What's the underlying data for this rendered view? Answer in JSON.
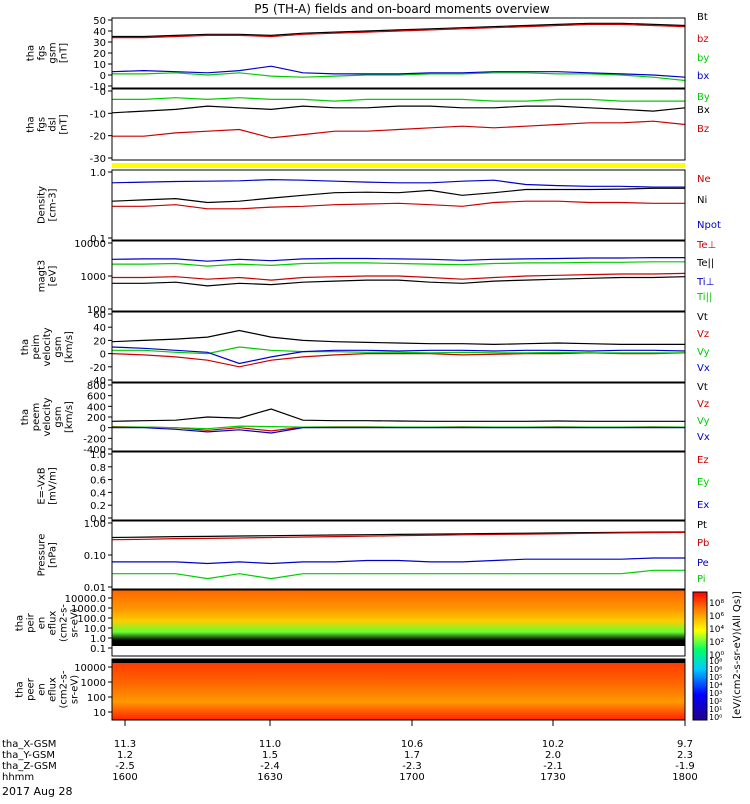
{
  "title": "P5 (TH-A) fields and on-board moments overview",
  "date_label": "2017 Aug 28",
  "colors": {
    "black": "#000000",
    "red": "#cc0000",
    "green": "#00cc00",
    "blue": "#0000cc",
    "yellow": "#ffff00"
  },
  "chart_data": [
    {
      "type": "line",
      "ylabel": [
        "tha",
        "fgs",
        "gsm",
        "[nT]"
      ],
      "ylim": [
        -10,
        50
      ],
      "yticks": [
        "50",
        "40",
        "30",
        "20",
        "10",
        "0",
        "-10"
      ],
      "series": [
        {
          "name": "Bt",
          "color": "#000000",
          "values": [
            35,
            35,
            36,
            37,
            37,
            36,
            38,
            39,
            40,
            41,
            42,
            43,
            44,
            45,
            46,
            47,
            47,
            46,
            45
          ]
        },
        {
          "name": "bz",
          "color": "#cc0000",
          "values": [
            34,
            34,
            35,
            36,
            36,
            35,
            37,
            38,
            39,
            40,
            41,
            42,
            43,
            44,
            45,
            46,
            46,
            45,
            44
          ]
        },
        {
          "name": "by",
          "color": "#00cc00",
          "values": [
            1,
            1,
            2,
            0,
            2,
            -1,
            -2,
            -1,
            0,
            0,
            1,
            1,
            2,
            2,
            1,
            1,
            0,
            -2,
            -5
          ]
        },
        {
          "name": "bx",
          "color": "#0000cc",
          "values": [
            3,
            4,
            3,
            2,
            4,
            8,
            2,
            1,
            1,
            1,
            2,
            2,
            3,
            3,
            3,
            2,
            1,
            0,
            -2
          ]
        }
      ]
    },
    {
      "type": "line",
      "ylabel": [
        "tha",
        "fgs",
        "dsl",
        "[nT]"
      ],
      "ylim": [
        -35,
        5
      ],
      "yticks": [
        "0",
        "-10",
        "-20",
        "-30"
      ],
      "series": [
        {
          "name": "By",
          "color": "#00cc00",
          "values": [
            0,
            0,
            1,
            0,
            1,
            0,
            0,
            -1,
            0,
            0,
            0,
            0,
            -1,
            -1,
            0,
            0,
            -1,
            -1,
            -1
          ]
        },
        {
          "name": "Bx",
          "color": "#000000",
          "values": [
            -8,
            -7,
            -6,
            -4,
            -5,
            -6,
            -4,
            -5,
            -5,
            -4,
            -4,
            -5,
            -5,
            -4,
            -4,
            -5,
            -6,
            -7,
            -5
          ]
        },
        {
          "name": "Bz",
          "color": "#cc0000",
          "values": [
            -22,
            -22,
            -20,
            -19,
            -18,
            -23,
            -21,
            -19,
            -19,
            -18,
            -17,
            -16,
            -17,
            -16,
            -15,
            -14,
            -14,
            -13,
            -15
          ]
        }
      ]
    },
    {
      "type": "line",
      "scale": "log",
      "ylabel": [
        "Density",
        "[cm-3]"
      ],
      "ylim": [
        0.1,
        1.2
      ],
      "yticks": [
        "1.0",
        "0.1"
      ],
      "series": [
        {
          "name": "Ne",
          "color": "#cc0000",
          "values": [
            0.33,
            0.33,
            0.35,
            0.3,
            0.3,
            0.32,
            0.33,
            0.35,
            0.36,
            0.37,
            0.35,
            0.33,
            0.38,
            0.4,
            0.4,
            0.38,
            0.38,
            0.37,
            0.37
          ]
        },
        {
          "name": "Ni",
          "color": "#000000",
          "values": [
            0.4,
            0.42,
            0.44,
            0.38,
            0.4,
            0.45,
            0.5,
            0.55,
            0.56,
            0.55,
            0.6,
            0.5,
            0.55,
            0.62,
            0.62,
            0.62,
            0.63,
            0.65,
            0.65
          ]
        },
        {
          "name": "Npot",
          "color": "#0000cc",
          "values": [
            0.8,
            0.82,
            0.84,
            0.85,
            0.86,
            0.9,
            0.88,
            0.85,
            0.82,
            0.8,
            0.8,
            0.85,
            0.88,
            0.75,
            0.72,
            0.7,
            0.7,
            0.68,
            0.68
          ]
        }
      ]
    },
    {
      "type": "line",
      "scale": "log",
      "ylabel": [
        "magt3",
        "[eV]"
      ],
      "ylim": [
        100,
        10000
      ],
      "yticks": [
        "10000",
        "1000",
        "100"
      ],
      "series": [
        {
          "name": "Te⊥",
          "color": "#cc0000",
          "values": [
            900,
            900,
            950,
            800,
            900,
            750,
            900,
            950,
            1000,
            1000,
            900,
            800,
            900,
            1000,
            1050,
            1100,
            1150,
            1150,
            1200
          ]
        },
        {
          "name": "Te||",
          "color": "#000000",
          "values": [
            600,
            600,
            650,
            500,
            600,
            550,
            650,
            700,
            750,
            750,
            650,
            600,
            700,
            750,
            800,
            850,
            900,
            900,
            950
          ]
        },
        {
          "name": "Ti⊥",
          "color": "#0000cc",
          "values": [
            3200,
            3300,
            3300,
            2800,
            3200,
            2900,
            3300,
            3400,
            3400,
            3300,
            3200,
            3000,
            3200,
            3300,
            3400,
            3500,
            3500,
            3600,
            3600
          ]
        },
        {
          "name": "Ti||",
          "color": "#00cc00",
          "values": [
            2300,
            2300,
            2400,
            2000,
            2300,
            2100,
            2400,
            2500,
            2500,
            2400,
            2300,
            2200,
            2400,
            2500,
            2500,
            2600,
            2600,
            2700,
            2700
          ]
        }
      ]
    },
    {
      "type": "line",
      "ylabel": [
        "tha",
        "peim",
        "velocity",
        "gsm",
        "[km/s]"
      ],
      "ylim": [
        -40,
        60
      ],
      "yticks": [
        "60",
        "40",
        "20",
        "0",
        "-20",
        "-40"
      ],
      "series": [
        {
          "name": "Vt",
          "color": "#000000",
          "values": [
            18,
            20,
            22,
            25,
            35,
            25,
            20,
            18,
            17,
            16,
            15,
            15,
            14,
            15,
            16,
            15,
            14,
            14,
            14
          ]
        },
        {
          "name": "Vz",
          "color": "#cc0000",
          "values": [
            0,
            -2,
            -5,
            -10,
            -20,
            -10,
            -5,
            -2,
            0,
            0,
            0,
            -2,
            -1,
            0,
            0,
            1,
            0,
            0,
            1
          ]
        },
        {
          "name": "Vy",
          "color": "#00cc00",
          "values": [
            5,
            5,
            2,
            0,
            10,
            5,
            3,
            3,
            2,
            2,
            1,
            2,
            1,
            1,
            2,
            1,
            1,
            1,
            1
          ]
        },
        {
          "name": "Vx",
          "color": "#0000cc",
          "values": [
            10,
            8,
            5,
            2,
            -15,
            -5,
            3,
            5,
            5,
            4,
            5,
            5,
            4,
            5,
            5,
            4,
            5,
            5,
            4
          ]
        }
      ]
    },
    {
      "type": "line",
      "ylabel": [
        "tha",
        "peem",
        "velocity",
        "gsm",
        "[km/s]"
      ],
      "ylim": [
        -400,
        800
      ],
      "yticks": [
        "800",
        "600",
        "400",
        "200",
        "0",
        "-200",
        "-400"
      ],
      "series": [
        {
          "name": "Vt",
          "color": "#000000",
          "values": [
            120,
            130,
            140,
            200,
            180,
            350,
            140,
            130,
            130,
            125,
            120,
            120,
            120,
            120,
            125,
            120,
            120,
            120,
            120
          ]
        },
        {
          "name": "Vz",
          "color": "#cc0000",
          "values": [
            20,
            10,
            0,
            -50,
            0,
            -60,
            10,
            15,
            15,
            10,
            10,
            15,
            10,
            10,
            15,
            10,
            10,
            15,
            10
          ]
        },
        {
          "name": "Vy",
          "color": "#00cc00",
          "values": [
            10,
            10,
            0,
            -20,
            30,
            20,
            10,
            10,
            10,
            10,
            10,
            10,
            10,
            10,
            10,
            10,
            10,
            10,
            10
          ]
        },
        {
          "name": "Vx",
          "color": "#0000cc",
          "values": [
            0,
            0,
            -30,
            -80,
            -40,
            -100,
            0,
            0,
            0,
            0,
            0,
            0,
            0,
            0,
            0,
            0,
            0,
            0,
            0
          ]
        }
      ]
    },
    {
      "type": "line",
      "ylabel": [
        "E=-VxB",
        "[mV/m]"
      ],
      "ylim": [
        0,
        1
      ],
      "yticks": [
        "1.0",
        "0.8",
        "0.6",
        "0.4",
        "0.2",
        "0.0"
      ],
      "series": [
        {
          "name": "Ez",
          "color": "#cc0000",
          "values": []
        },
        {
          "name": "Ey",
          "color": "#00cc00",
          "values": []
        },
        {
          "name": "Ex",
          "color": "#0000cc",
          "values": []
        }
      ]
    },
    {
      "type": "line",
      "scale": "log",
      "ylabel": [
        "Pressure",
        "[nPa]"
      ],
      "ylim": [
        0.01,
        2
      ],
      "yticks": [
        "1.00",
        "0.10",
        "0.01"
      ],
      "series": [
        {
          "name": "Pt",
          "color": "#000000",
          "values": [
            0.6,
            0.62,
            0.65,
            0.66,
            0.68,
            0.7,
            0.72,
            0.74,
            0.76,
            0.78,
            0.8,
            0.82,
            0.84,
            0.86,
            0.88,
            0.9,
            0.92,
            0.94,
            0.95
          ]
        },
        {
          "name": "Pb",
          "color": "#cc0000",
          "values": [
            0.5,
            0.52,
            0.55,
            0.56,
            0.58,
            0.6,
            0.63,
            0.65,
            0.67,
            0.7,
            0.72,
            0.75,
            0.78,
            0.8,
            0.82,
            0.85,
            0.88,
            0.9,
            0.92
          ]
        },
        {
          "name": "Pe",
          "color": "#0000cc",
          "values": [
            0.08,
            0.08,
            0.08,
            0.07,
            0.08,
            0.07,
            0.08,
            0.08,
            0.09,
            0.09,
            0.08,
            0.08,
            0.09,
            0.1,
            0.1,
            0.1,
            0.1,
            0.11,
            0.11
          ]
        },
        {
          "name": "Pi",
          "color": "#00cc00",
          "values": [
            0.03,
            0.03,
            0.03,
            0.02,
            0.03,
            0.02,
            0.03,
            0.03,
            0.03,
            0.03,
            0.03,
            0.03,
            0.03,
            0.03,
            0.03,
            0.03,
            0.03,
            0.04,
            0.04
          ]
        }
      ]
    },
    {
      "type": "heatmap",
      "ylabel": [
        "tha",
        "peir",
        "en",
        "eflux",
        "(cm2-s-",
        "sr-eV)"
      ],
      "scale": "log",
      "yticks": [
        "10000.0",
        "1000.0",
        "100.0",
        "10.0",
        "1.0",
        "0.1"
      ]
    },
    {
      "type": "heatmap",
      "ylabel": [
        "tha",
        "peer",
        "en",
        "eflux",
        "(cm2-s-",
        "sr-eV)"
      ],
      "scale": "log",
      "yticks": [
        "10000",
        "1000",
        "100",
        "10"
      ]
    }
  ],
  "colorbar": {
    "label": "[eV/(cm2-s-sr-eV)(All Qs)]",
    "ticks_top": [
      "10⁸",
      "10⁶",
      "10⁴",
      "10²",
      "10⁰"
    ],
    "ticks_bottom": [
      "10⁸",
      "10⁶",
      "10⁵",
      "10⁴",
      "10³",
      "10²",
      "10¹",
      "10⁰"
    ]
  },
  "x_axis": {
    "rows": [
      {
        "label": "tha_X-GSM",
        "values": [
          "11.3",
          "11.0",
          "10.6",
          "10.2",
          "9.7"
        ]
      },
      {
        "label": "tha_Y-GSM",
        "values": [
          "1.2",
          "1.5",
          "1.7",
          "2.0",
          "2.3"
        ]
      },
      {
        "label": "tha_Z-GSM",
        "values": [
          "-2.5",
          "-2.4",
          "-2.3",
          "-2.1",
          "-1.9"
        ]
      },
      {
        "label": "hhmm",
        "values": [
          "1600",
          "1630",
          "1700",
          "1730",
          "1800"
        ]
      }
    ]
  }
}
